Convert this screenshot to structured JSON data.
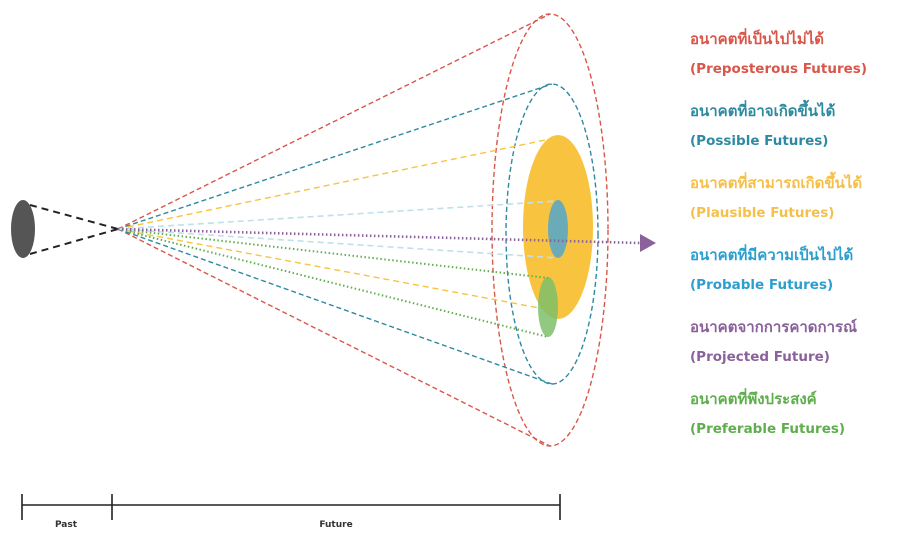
{
  "colors": {
    "preposterous": "#d9564a",
    "possible": "#2e8aa0",
    "plausible": "#f8c43f",
    "probable": "#33a9d6",
    "projected": "#8b619c",
    "preferable": "#5fae4d",
    "past_ellipse": "#555555",
    "timeline": "#222222"
  },
  "legend": [
    {
      "key": "preposterous",
      "thai": "อนาคตที่เป็นไปไม่ได้",
      "english": "(Preposterous Futures)",
      "color": "#d9564a"
    },
    {
      "key": "possible",
      "thai": "อนาคตที่อาจเกิดขึ้นได้",
      "english": "(Possible Futures)",
      "color": "#2e8aa0"
    },
    {
      "key": "plausible",
      "thai": "อนาคตที่สามารถเกิดขึ้นได้",
      "english": "(Plausible Futures)",
      "color": "#f5c04a"
    },
    {
      "key": "probable",
      "thai": "อนาคตที่มีความเป็นไปได้",
      "english": "(Probable Futures)",
      "color": "#2b9fcf"
    },
    {
      "key": "projected",
      "thai": "อนาคตจากการคาดการณ์",
      "english": "(Projected Future)",
      "color": "#8b619c"
    },
    {
      "key": "preferable",
      "thai": "อนาคตที่พึงประสงค์",
      "english": "(Preferable Futures)",
      "color": "#5fae4d"
    }
  ],
  "timeline": {
    "past_label": "Past",
    "future_label": "Future"
  }
}
